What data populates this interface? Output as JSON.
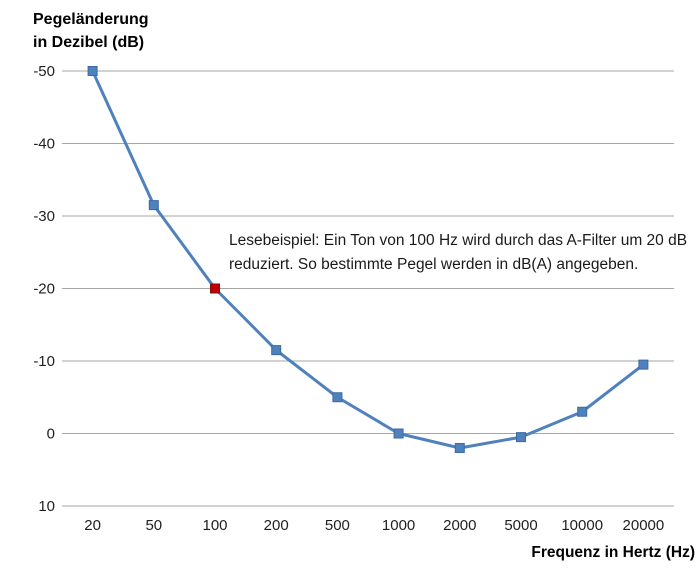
{
  "title": {
    "line1": "Pegeländerung",
    "line2": "in Dezibel (dB)"
  },
  "x_axis_title": "Frequenz in Hertz (Hz)",
  "annotation": {
    "line1": "Lesebeispiel: Ein Ton von 100 Hz wird durch das A-Filter um 20 dB",
    "line2": "reduziert. So bestimmte Pegel werden in dB(A) angegeben."
  },
  "chart_data": {
    "type": "line",
    "title": "",
    "ylabel": "Pegeländerung in Dezibel (dB)",
    "xlabel": "Frequenz in Hertz (Hz)",
    "categories": [
      "20",
      "50",
      "100",
      "200",
      "500",
      "1000",
      "2000",
      "5000",
      "10000",
      "20000"
    ],
    "values": [
      -50,
      -31.5,
      -20,
      -11.5,
      -5,
      0,
      2,
      0.5,
      -3,
      -9.5
    ],
    "yticks": [
      -50,
      -40,
      -30,
      -20,
      -10,
      0,
      10
    ],
    "ylim": [
      -50,
      10
    ],
    "y_axis_inverted": true,
    "grid": "horizontal-only",
    "legend": "none",
    "marker": "square",
    "annotation": "Lesebeispiel: Ein Ton von 100 Hz wird durch das A-Filter um 20 dB reduziert. So bestimmte Pegel werden in dB(A) angegeben.",
    "highlight_point": {
      "index": 2,
      "category": "100",
      "value": -20,
      "color": "#c00000",
      "border_color": "#7f1010"
    },
    "line_color": "#4f81bd",
    "marker_border_color": "#3a6aa6",
    "grid_color": "#a6a6a6",
    "text_color": "#1f1f1f",
    "background_color": "#ffffff"
  }
}
